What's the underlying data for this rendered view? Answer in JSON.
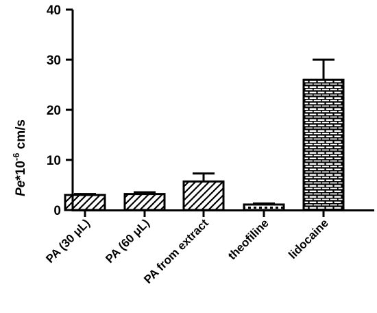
{
  "chart_data": {
    "type": "bar",
    "categories": [
      "PA (30 μL)",
      "PA (60 μL)",
      "PA from extract",
      "theofiline",
      "lidocaine"
    ],
    "values": [
      3.0,
      3.2,
      5.7,
      1.1,
      26.0
    ],
    "errors": [
      0.2,
      0.35,
      1.6,
      0.2,
      4.0
    ],
    "patterns": [
      "hatch",
      "hatch",
      "hatch",
      "dots",
      "brick"
    ],
    "ylabel": {
      "italic": "Pe",
      "rest": "*10",
      "sup": "-6",
      "unit": " cm/s"
    },
    "ylim": [
      0,
      40
    ],
    "yticks": [
      0,
      10,
      20,
      30,
      40
    ],
    "grid": false,
    "legend": "none"
  }
}
